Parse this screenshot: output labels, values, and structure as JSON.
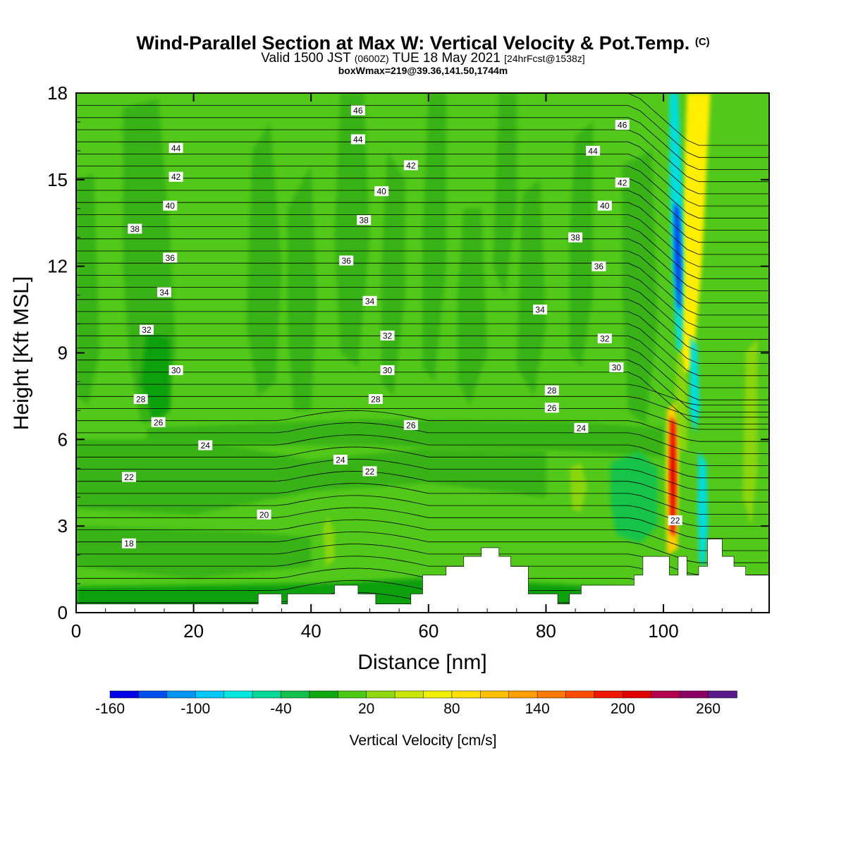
{
  "title": {
    "main": "Wind-Parallel Section at Max W: Vertical Velocity & Pot.Temp.",
    "copyright": "(C)",
    "valid_prefix": "Valid 1500 JST",
    "valid_utc": "(0600Z)",
    "valid_date": "TUE 18 May 2021",
    "forecast": "[24hrFcst@1538z]",
    "box_info": "boxWmax=219@39.36,141.50,1744m"
  },
  "colors": {
    "background_green": "#52c81a",
    "mid_green": "#37b214",
    "dark_green": "#0ca00c",
    "teal_green": "#17c34a",
    "light_green": "#8ad60e",
    "yellow": "#ffee00",
    "updraft_red": "#e60000",
    "downdraft_blue": "#0044ee",
    "cyan": "#00dddd"
  },
  "chart_data": {
    "type": "heatmap",
    "xlabel": "Distance [nm]",
    "ylabel": "Height [Kft MSL]",
    "xlim": [
      0,
      118
    ],
    "ylim": [
      0,
      18
    ],
    "x_ticks": [
      "0",
      "20",
      "40",
      "60",
      "80",
      "100"
    ],
    "y_ticks": [
      "0",
      "3",
      "6",
      "9",
      "12",
      "15",
      "18"
    ],
    "colorbar": {
      "label": "Vertical Velocity [cm/s]",
      "tick_labels": [
        "-160",
        "-100",
        "-40",
        "20",
        "80",
        "140",
        "200",
        "260"
      ],
      "colors": [
        "#0000e6",
        "#0050f0",
        "#0096f8",
        "#00c8f8",
        "#00e8e0",
        "#00d898",
        "#14c04c",
        "#10a810",
        "#4cc814",
        "#90d810",
        "#c8e600",
        "#f0f000",
        "#ffe000",
        "#ffc000",
        "#ffa000",
        "#ff7800",
        "#ff4c00",
        "#f01800",
        "#e00000",
        "#b4004c",
        "#8c0064",
        "#5a1a8c"
      ]
    },
    "theta_contour_labels": [
      {
        "x": 48,
        "y": 17.4,
        "text": "46"
      },
      {
        "x": 93,
        "y": 16.9,
        "text": "46"
      },
      {
        "x": 48,
        "y": 16.4,
        "text": "44"
      },
      {
        "x": 17,
        "y": 16.1,
        "text": "44"
      },
      {
        "x": 88,
        "y": 16.0,
        "text": "44"
      },
      {
        "x": 57,
        "y": 15.5,
        "text": "42"
      },
      {
        "x": 17,
        "y": 15.1,
        "text": "42"
      },
      {
        "x": 93,
        "y": 14.9,
        "text": "42"
      },
      {
        "x": 52,
        "y": 14.6,
        "text": "40"
      },
      {
        "x": 16,
        "y": 14.1,
        "text": "40"
      },
      {
        "x": 90,
        "y": 14.1,
        "text": "40"
      },
      {
        "x": 49,
        "y": 13.6,
        "text": "38"
      },
      {
        "x": 10,
        "y": 13.3,
        "text": "38"
      },
      {
        "x": 85,
        "y": 13.0,
        "text": "38"
      },
      {
        "x": 16,
        "y": 12.3,
        "text": "36"
      },
      {
        "x": 46,
        "y": 12.2,
        "text": "36"
      },
      {
        "x": 89,
        "y": 12.0,
        "text": "36"
      },
      {
        "x": 15,
        "y": 11.1,
        "text": "34"
      },
      {
        "x": 50,
        "y": 10.8,
        "text": "34"
      },
      {
        "x": 79,
        "y": 10.5,
        "text": "34"
      },
      {
        "x": 12,
        "y": 9.8,
        "text": "32"
      },
      {
        "x": 53,
        "y": 9.6,
        "text": "32"
      },
      {
        "x": 90,
        "y": 9.5,
        "text": "32"
      },
      {
        "x": 17,
        "y": 8.4,
        "text": "30"
      },
      {
        "x": 53,
        "y": 8.4,
        "text": "30"
      },
      {
        "x": 92,
        "y": 8.5,
        "text": "30"
      },
      {
        "x": 81,
        "y": 7.7,
        "text": "28"
      },
      {
        "x": 11,
        "y": 7.4,
        "text": "28"
      },
      {
        "x": 51,
        "y": 7.4,
        "text": "28"
      },
      {
        "x": 81,
        "y": 7.1,
        "text": "26"
      },
      {
        "x": 14,
        "y": 6.6,
        "text": "26"
      },
      {
        "x": 57,
        "y": 6.5,
        "text": "26"
      },
      {
        "x": 86,
        "y": 6.4,
        "text": "24"
      },
      {
        "x": 22,
        "y": 5.8,
        "text": "24"
      },
      {
        "x": 45,
        "y": 5.3,
        "text": "24"
      },
      {
        "x": 50,
        "y": 4.9,
        "text": "22"
      },
      {
        "x": 9,
        "y": 4.7,
        "text": "22"
      },
      {
        "x": 32,
        "y": 3.4,
        "text": "20"
      },
      {
        "x": 102,
        "y": 3.2,
        "text": "22"
      },
      {
        "x": 9,
        "y": 2.4,
        "text": "18"
      }
    ]
  }
}
